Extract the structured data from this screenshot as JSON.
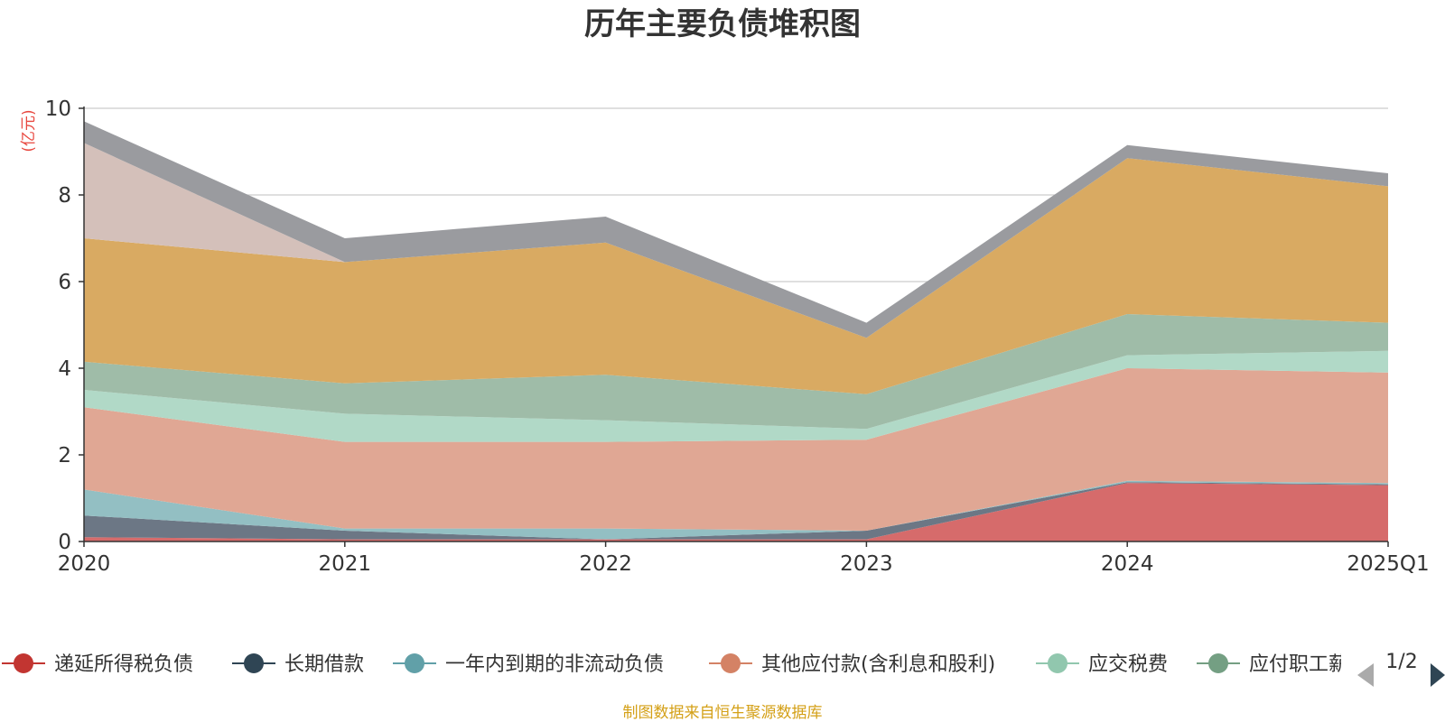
{
  "chart_data": {
    "type": "area",
    "title": "历年主要负债堆积图",
    "unit_label": "(亿元)",
    "x": [
      "2020",
      "2021",
      "2022",
      "2023",
      "2024",
      "2025Q1"
    ],
    "ylim": [
      0,
      10
    ],
    "yticks": [
      0,
      2,
      4,
      6,
      8,
      10
    ],
    "grid": true,
    "stacked": true,
    "series": [
      {
        "name": "递延所得税负债",
        "color": "#d66b6b",
        "legend_color": "#c23531",
        "values": [
          0.1,
          0.05,
          0.05,
          0.05,
          1.35,
          1.3
        ]
      },
      {
        "name": "长期借款",
        "color": "#6c7785",
        "legend_color": "#2f4554",
        "values": [
          0.5,
          0.2,
          0.0,
          0.2,
          0.02,
          0.02
        ]
      },
      {
        "name": "一年内到期的非流动负债",
        "color": "#93bfc3",
        "legend_color": "#61a0a8",
        "values": [
          0.6,
          0.05,
          0.25,
          0.0,
          0.03,
          0.03
        ]
      },
      {
        "name": "其他应付款(含利息和股利)",
        "color": "#e0a794",
        "legend_color": "#d48265",
        "values": [
          1.9,
          2.0,
          2.0,
          2.1,
          2.6,
          2.55
        ]
      },
      {
        "name": "应交税费",
        "color": "#b1d9c7",
        "legend_color": "#91c7ae",
        "values": [
          0.4,
          0.65,
          0.5,
          0.25,
          0.3,
          0.5
        ]
      },
      {
        "name": "应付职工薪酬",
        "color": "#9fbca8",
        "legend_color": "#749f83",
        "values": [
          0.65,
          0.7,
          1.05,
          0.8,
          0.95,
          0.65
        ]
      },
      {
        "name": "",
        "color": "#d9aa62",
        "legend_color": "#ca8622",
        "values": [
          2.85,
          2.8,
          3.05,
          1.3,
          3.6,
          3.15
        ]
      },
      {
        "name": "",
        "color": "#d4c0ba",
        "legend_color": "#bda29a",
        "values": [
          2.2,
          0.0,
          0.0,
          0.0,
          0.0,
          0.0
        ]
      },
      {
        "name": "",
        "color": "#9a9b9f",
        "legend_color": "#6e7074",
        "values": [
          0.5,
          0.55,
          0.6,
          0.35,
          0.3,
          0.3
        ]
      }
    ],
    "legend": {
      "position": "bottom",
      "page": "1/2"
    },
    "source": "制图数据来自恒生聚源数据库"
  }
}
